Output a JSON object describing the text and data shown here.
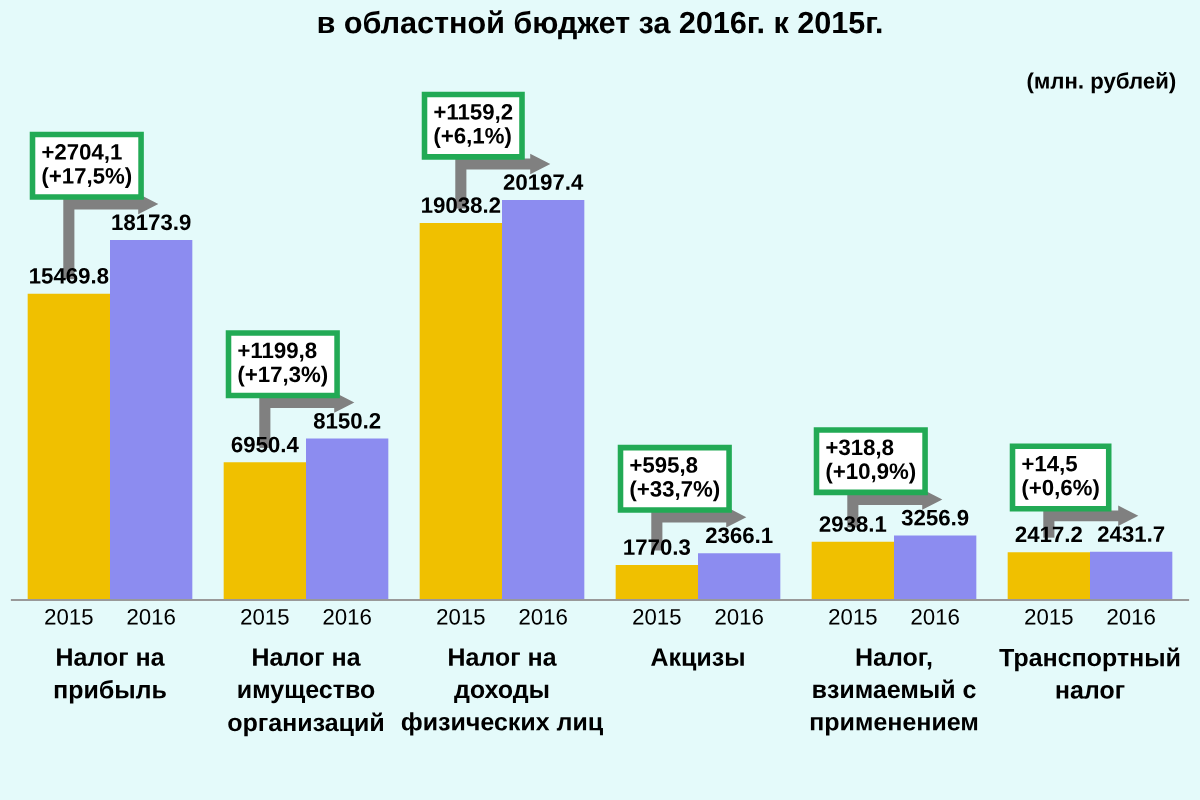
{
  "chart_data": {
    "type": "bar",
    "title": "в областной бюджет за 2016г. к 2015г.",
    "categories": [
      "Налог на\nприбыль",
      "Налог на\nимущество\nорганизаций",
      "Налог на\nдоходы\nфизических лиц",
      "Акцизы",
      "Налог,\nвзимаемый с\nприменением",
      "Транспортный\nналог"
    ],
    "series": [
      {
        "name": "2015",
        "color": "#f0c000",
        "values": [
          15469.8,
          6950.4,
          19038.2,
          1770.3,
          2938.1,
          2417.2
        ]
      },
      {
        "name": "2016",
        "color": "#8c8cf0",
        "values": [
          18173.9,
          8150.2,
          20197.4,
          2366.1,
          3256.9,
          2431.7
        ]
      }
    ],
    "data_labels": true,
    "legend": false,
    "annotations": [
      "(млн. рублей)",
      "+2704,1\n(+17,5%)",
      "+1199,8\n(+17,3%)",
      "+1159,2\n(+6,1%)",
      "+595,8\n(+33,7%)",
      "+318,8\n(+10,9%)",
      "+14,5\n(+0,6%)"
    ]
  }
}
